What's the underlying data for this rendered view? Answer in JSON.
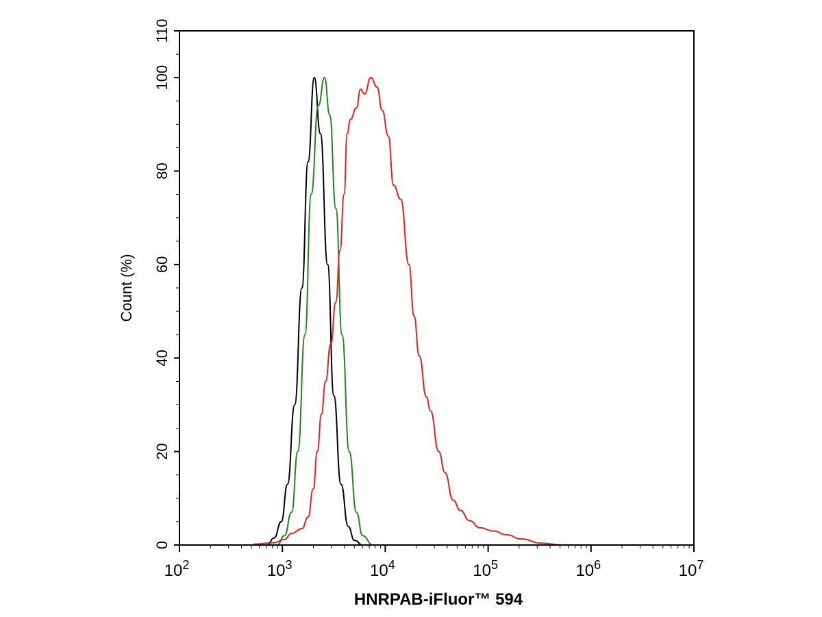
{
  "chart_data": {
    "type": "line",
    "title": "",
    "xlabel": "HNRPAB-iFluor™ 594",
    "ylabel": "Count  (%)",
    "xscale": "log10",
    "xlim_log10": [
      2,
      7
    ],
    "ylim": [
      0,
      110
    ],
    "x_ticks": [
      {
        "base": "10",
        "exp": "2"
      },
      {
        "base": "10",
        "exp": "3"
      },
      {
        "base": "10",
        "exp": "4"
      },
      {
        "base": "10",
        "exp": "5"
      },
      {
        "base": "10",
        "exp": "6"
      },
      {
        "base": "10",
        "exp": "7"
      }
    ],
    "y_ticks": [
      "0",
      "20",
      "40",
      "60",
      "80",
      "100",
      "110"
    ],
    "y_tick_values": [
      0,
      20,
      40,
      60,
      80,
      100,
      110
    ],
    "grid": false,
    "legend": "none",
    "series": [
      {
        "name": "black",
        "color": "#000000",
        "x_log10": [
          2.85,
          2.92,
          2.99,
          3.05,
          3.12,
          3.19,
          3.25,
          3.31,
          3.37,
          3.44,
          3.5,
          3.57,
          3.64,
          3.7,
          3.78
        ],
        "y": [
          0,
          1.5,
          5,
          13,
          30,
          55,
          82,
          100,
          88,
          60,
          32,
          13,
          4,
          1,
          0
        ]
      },
      {
        "name": "green",
        "color": "#1a8a1a",
        "x_log10": [
          2.95,
          3.02,
          3.09,
          3.15,
          3.22,
          3.28,
          3.35,
          3.41,
          3.46,
          3.52,
          3.58,
          3.65,
          3.72,
          3.78,
          3.88
        ],
        "y": [
          0,
          2,
          7,
          20,
          45,
          75,
          94,
          100,
          92,
          72,
          45,
          20,
          7,
          2,
          0
        ]
      },
      {
        "name": "red",
        "color": "#ee1c1c",
        "x_log10": [
          2.72,
          2.92,
          3.02,
          3.09,
          3.19,
          3.25,
          3.3,
          3.34,
          3.38,
          3.42,
          3.47,
          3.52,
          3.56,
          3.6,
          3.63,
          3.66,
          3.72,
          3.76,
          3.8,
          3.86,
          3.92,
          3.97,
          4.03,
          4.08,
          4.15,
          4.23,
          4.28,
          4.33,
          4.4,
          4.44,
          4.52,
          4.58,
          4.66,
          4.73,
          4.82,
          4.92,
          5.05,
          5.18,
          5.32,
          5.52,
          5.72
        ],
        "y": [
          0.2,
          0.5,
          1.2,
          2.5,
          3.5,
          6,
          12,
          20,
          28,
          35,
          43,
          52,
          63,
          75,
          88,
          91,
          93.5,
          97.5,
          96.5,
          100,
          98,
          93,
          87.5,
          77,
          74,
          60,
          49,
          40.5,
          31.7,
          28.7,
          20,
          15.5,
          9.6,
          7.4,
          5.2,
          3.7,
          3,
          2.2,
          1.3,
          0.4,
          0
        ]
      }
    ]
  }
}
